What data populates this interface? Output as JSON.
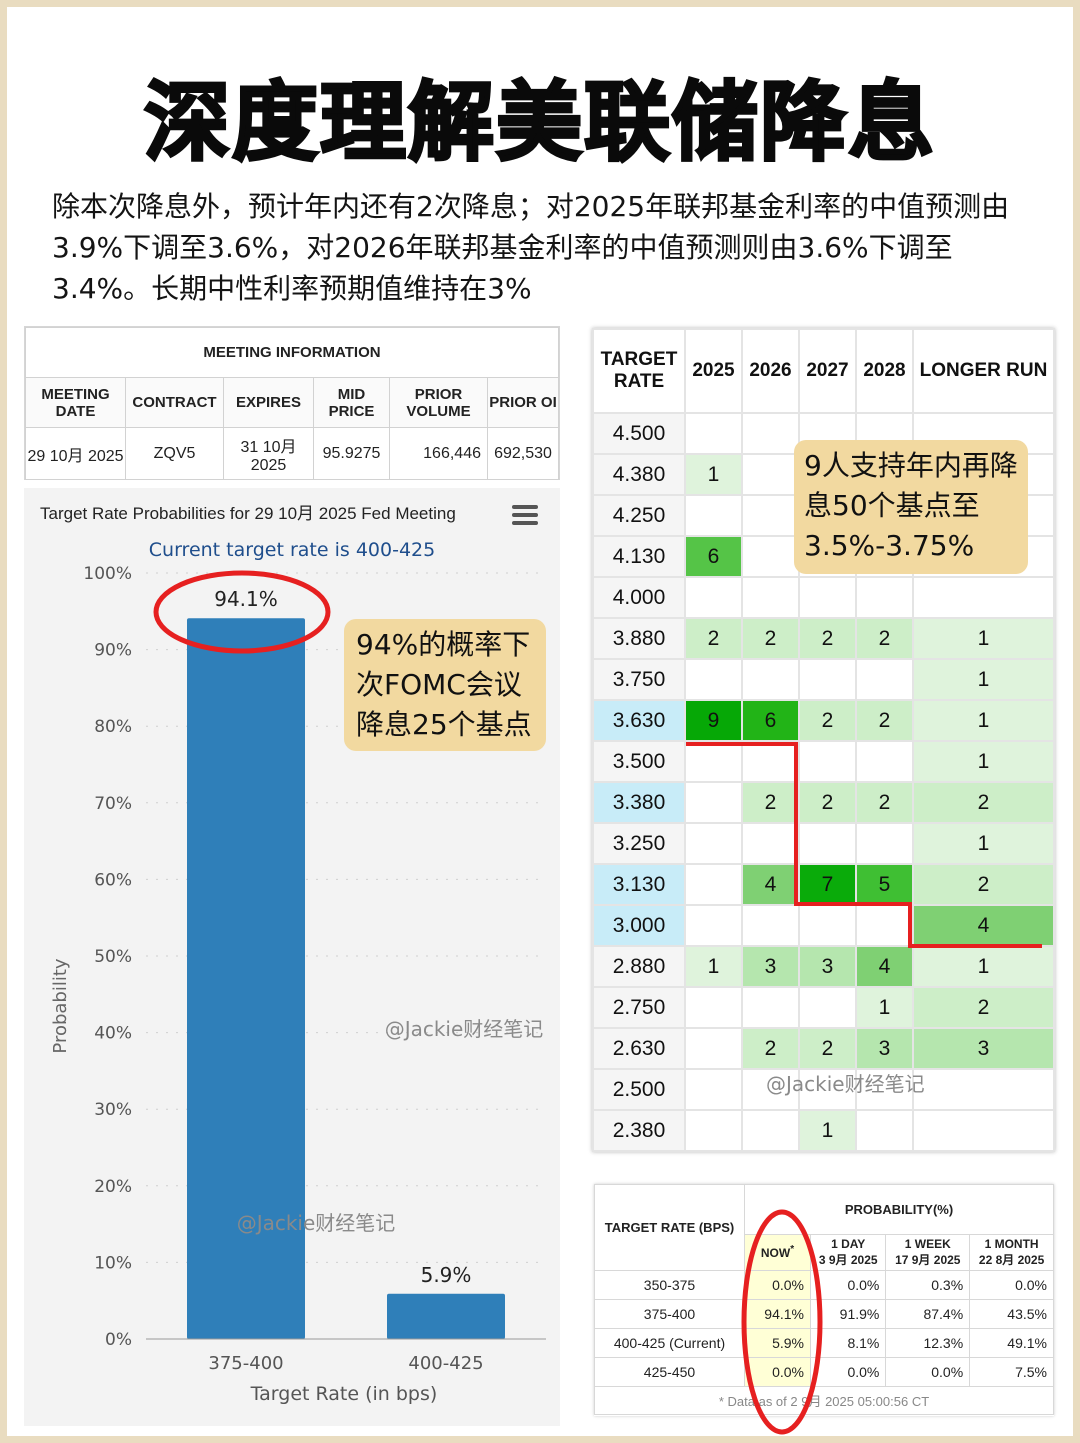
{
  "title": "深度理解美联储降息",
  "intro": "除本次降息外，预计年内还有2次降息；对2025年联邦基金利率的中值预测由3.9%下调至3.6%，对2026年联邦基金利率的中值预测则由3.6%下调至3.4%。长期中性利率预期值维持在3%",
  "meeting": {
    "caption": "MEETING INFORMATION",
    "headers": [
      "MEETING DATE",
      "CONTRACT",
      "EXPIRES",
      "MID PRICE",
      "PRIOR VOLUME",
      "PRIOR OI"
    ],
    "values": [
      "29 10月 2025",
      "ZQV5",
      "31 10月 2025",
      "95.9275",
      "166,446",
      "692,530"
    ]
  },
  "chart_data": {
    "type": "bar",
    "title": "Target Rate Probabilities for 29 10月 2025 Fed Meeting",
    "subtitle": "Current target rate is 400-425",
    "categories": [
      "375-400",
      "400-425"
    ],
    "values": [
      94.1,
      5.9
    ],
    "value_labels": [
      "94.1%",
      "5.9%"
    ],
    "xlabel": "Target Rate (in bps)",
    "ylabel": "Probability",
    "ylim": [
      0,
      100
    ],
    "yticks": [
      "0%",
      "10%",
      "20%",
      "30%",
      "40%",
      "50%",
      "60%",
      "70%",
      "80%",
      "90%",
      "100%"
    ],
    "grid": true,
    "bar_color": "#2f7fb9"
  },
  "annotations": {
    "cut25": "94%的概率下次FOMC会议降息25个基点",
    "cut50": "9人支持年内再降息50个基点至3.5%-3.75%"
  },
  "watermarks": [
    "@Jackie财经笔记",
    "@Jackie财经笔记",
    "@Jackie财经笔记"
  ],
  "dot_plot": {
    "header_rate": "TARGET RATE",
    "years": [
      "2025",
      "2026",
      "2027",
      "2028",
      "LONGER RUN"
    ],
    "rows": [
      {
        "rate": "4.500",
        "vals": [
          "",
          "",
          "",
          "",
          ""
        ]
      },
      {
        "rate": "4.380",
        "vals": [
          "1",
          "",
          "",
          "",
          ""
        ]
      },
      {
        "rate": "4.250",
        "vals": [
          "",
          "",
          "",
          "",
          ""
        ]
      },
      {
        "rate": "4.130",
        "vals": [
          "6",
          "",
          "",
          "",
          ""
        ]
      },
      {
        "rate": "4.000",
        "vals": [
          "",
          "",
          "",
          "",
          ""
        ]
      },
      {
        "rate": "3.880",
        "vals": [
          "2",
          "2",
          "2",
          "2",
          "1"
        ]
      },
      {
        "rate": "3.750",
        "vals": [
          "",
          "",
          "",
          "",
          "1"
        ]
      },
      {
        "rate": "3.630",
        "vals": [
          "9",
          "6",
          "2",
          "2",
          "1"
        ]
      },
      {
        "rate": "3.500",
        "vals": [
          "",
          "",
          "",
          "",
          "1"
        ]
      },
      {
        "rate": "3.380",
        "vals": [
          "",
          "2",
          "2",
          "2",
          "2"
        ]
      },
      {
        "rate": "3.250",
        "vals": [
          "",
          "",
          "",
          "",
          "1"
        ]
      },
      {
        "rate": "3.130",
        "vals": [
          "",
          "4",
          "7",
          "5",
          "2"
        ]
      },
      {
        "rate": "3.000",
        "vals": [
          "",
          "",
          "",
          "",
          "4"
        ]
      },
      {
        "rate": "2.880",
        "vals": [
          "1",
          "3",
          "3",
          "4",
          "1"
        ]
      },
      {
        "rate": "2.750",
        "vals": [
          "",
          "",
          "",
          "1",
          "2"
        ]
      },
      {
        "rate": "2.630",
        "vals": [
          "",
          "2",
          "2",
          "3",
          "3"
        ]
      },
      {
        "rate": "2.500",
        "vals": [
          "",
          "",
          "",
          "",
          ""
        ]
      },
      {
        "rate": "2.380",
        "vals": [
          "",
          "",
          "1",
          "",
          ""
        ]
      }
    ]
  },
  "probability": {
    "header_target": "TARGET RATE (BPS)",
    "header_prob": "PROBABILITY(%)",
    "columns": [
      {
        "line1": "NOW",
        "line2": ""
      },
      {
        "line1": "1 DAY",
        "line2": "3 9月 2025"
      },
      {
        "line1": "1 WEEK",
        "line2": "17 9月 2025"
      },
      {
        "line1": "1 MONTH",
        "line2": "22 8月 2025"
      }
    ],
    "rows": [
      {
        "rate": "350-375",
        "vals": [
          "0.0%",
          "0.0%",
          "0.3%",
          "0.0%"
        ]
      },
      {
        "rate": "375-400",
        "vals": [
          "94.1%",
          "91.9%",
          "87.4%",
          "43.5%"
        ]
      },
      {
        "rate": "400-425 (Current)",
        "vals": [
          "5.9%",
          "8.1%",
          "12.3%",
          "49.1%"
        ]
      },
      {
        "rate": "425-450",
        "vals": [
          "0.0%",
          "0.0%",
          "0.0%",
          "7.5%"
        ]
      }
    ],
    "footnote": "* Data as of 2 9月 2025 05:00:56 CT"
  }
}
